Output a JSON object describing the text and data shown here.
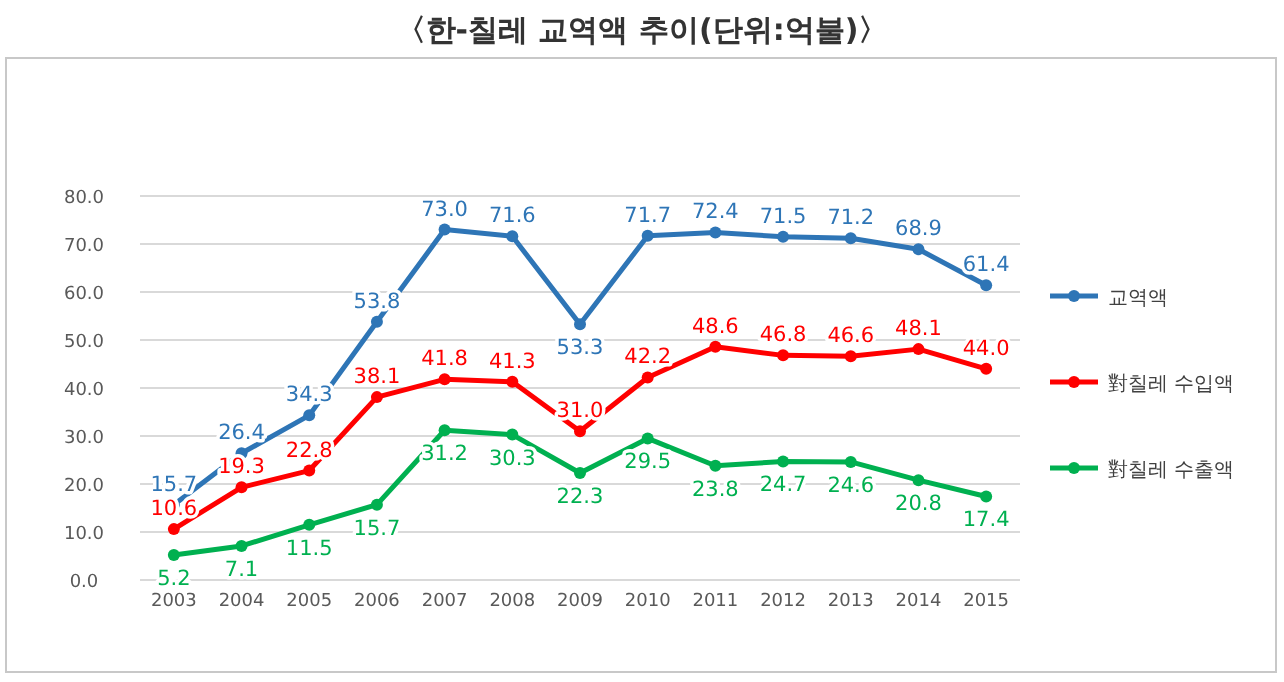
{
  "chart_data": {
    "type": "line",
    "title": "〈한-칠레 교역액 추이(단위:억불)〉",
    "categories": [
      "2003",
      "2004",
      "2005",
      "2006",
      "2007",
      "2008",
      "2009",
      "2010",
      "2011",
      "2012",
      "2013",
      "2014",
      "2015"
    ],
    "ylim": [
      0,
      80
    ],
    "yticks": [
      {
        "value": 0,
        "label": "0.0"
      },
      {
        "value": 10,
        "label": "10.0"
      },
      {
        "value": 20,
        "label": "20.0"
      },
      {
        "value": 30,
        "label": "30.0"
      },
      {
        "value": 40,
        "label": "40.0"
      },
      {
        "value": 50,
        "label": "50.0"
      },
      {
        "value": 60,
        "label": "60.0"
      },
      {
        "value": 70,
        "label": "70.0"
      },
      {
        "value": 80,
        "label": "80.0"
      }
    ],
    "grid": "y",
    "legend": "right",
    "marker": "circle",
    "line_style": "solid",
    "series": [
      {
        "name": "교역액",
        "color": "#2e75b6",
        "values": [
          15.7,
          26.4,
          34.3,
          53.8,
          73.0,
          71.6,
          53.3,
          71.7,
          72.4,
          71.5,
          71.2,
          68.9,
          61.4
        ],
        "value_labels": [
          "15.7",
          "26.4",
          "34.3",
          "53.8",
          "73.0",
          "71.6",
          "53.3",
          "71.7",
          "72.4",
          "71.5",
          "71.2",
          "68.9",
          "61.4"
        ]
      },
      {
        "name": "對칠레 수입액",
        "color": "#ff0000",
        "values": [
          10.6,
          19.3,
          22.8,
          38.1,
          41.8,
          41.3,
          31.0,
          42.2,
          48.6,
          46.8,
          46.6,
          48.1,
          44.0
        ],
        "value_labels": [
          "10.6",
          "19.3",
          "22.8",
          "38.1",
          "41.8",
          "41.3",
          "31.0",
          "42.2",
          "48.6",
          "46.8",
          "46.6",
          "48.1",
          "44.0"
        ]
      },
      {
        "name": "對칠레 수출액",
        "color": "#00b050",
        "values": [
          5.2,
          7.1,
          11.5,
          15.7,
          31.2,
          30.3,
          22.3,
          29.5,
          23.8,
          24.7,
          24.6,
          20.8,
          17.4
        ],
        "value_labels": [
          "5.2",
          "7.1",
          "11.5",
          "15.7",
          "31.2",
          "30.3",
          "22.3",
          "29.5",
          "23.8",
          "24.7",
          "24.6",
          "20.8",
          "17.4"
        ]
      }
    ]
  }
}
